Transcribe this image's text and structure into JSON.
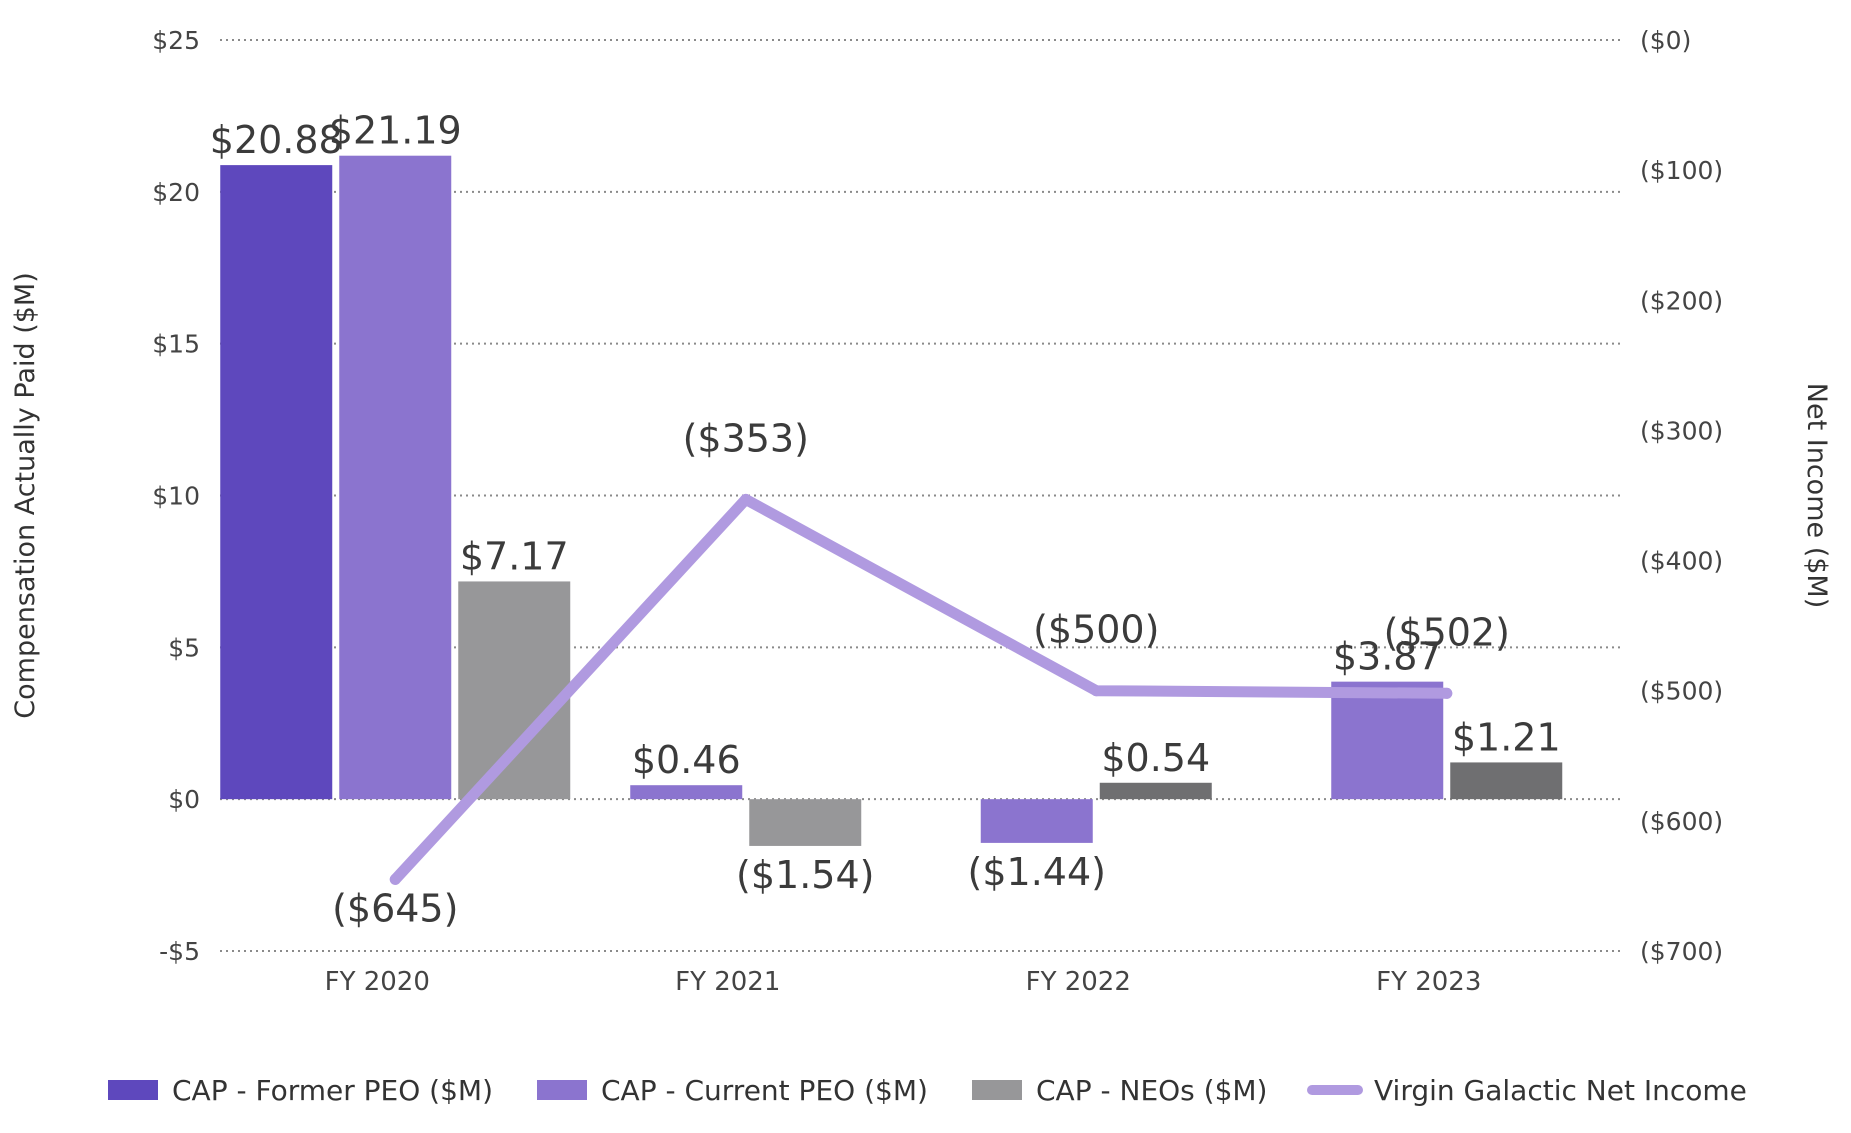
{
  "chart_data": {
    "type": "bar",
    "categories": [
      "FY 2020",
      "FY 2021",
      "FY 2022",
      "FY 2023"
    ],
    "series": [
      {
        "name": "CAP - Former PEO ($M)",
        "kind": "bar",
        "axis": "left",
        "color": "#5e48bd",
        "values": [
          20.88,
          null,
          null,
          null
        ],
        "labels": [
          "$20.88",
          null,
          null,
          null
        ]
      },
      {
        "name": "CAP - Current PEO ($M)",
        "kind": "bar",
        "axis": "left",
        "color": "#8b74cf",
        "values": [
          21.19,
          0.46,
          -1.44,
          3.87
        ],
        "labels": [
          "$21.19",
          "$0.46",
          "($1.44)",
          "$3.87"
        ]
      },
      {
        "name": "CAP - NEOs ($M)",
        "kind": "bar",
        "axis": "left",
        "color": "#979799",
        "colors": [
          "#979799",
          "#979799",
          "#6f6f71",
          "#6f6f71"
        ],
        "values": [
          7.17,
          -1.54,
          0.54,
          1.21
        ],
        "labels": [
          "$7.17",
          "($1.54)",
          "$0.54",
          "$1.21"
        ]
      },
      {
        "name": "Virgin Galactic Net Income",
        "kind": "line",
        "axis": "right",
        "color": "#b09ae0",
        "values": [
          -645,
          -353,
          -500,
          -502
        ],
        "labels": [
          "($645)",
          "($353)",
          "($500)",
          "($502)"
        ]
      }
    ],
    "left_axis": {
      "title": "Compensation Actually Paid ($M)",
      "range": [
        -5,
        25
      ],
      "ticks": [
        25,
        20,
        15,
        10,
        5,
        0,
        -5
      ],
      "tick_labels": [
        "$25",
        "$20",
        "$15",
        "$10",
        "$5",
        "$0",
        "-$5"
      ]
    },
    "right_axis": {
      "title": "Net Income ($M)",
      "range": [
        -700,
        0
      ],
      "ticks": [
        0,
        -100,
        -200,
        -300,
        -400,
        -500,
        -600,
        -700
      ],
      "tick_labels": [
        "($0)",
        "($100)",
        "($200)",
        "($300)",
        "($400)",
        "($500)",
        "($600)",
        "($700)"
      ]
    },
    "grid": "horizontal-dotted",
    "legend_position": "bottom"
  }
}
